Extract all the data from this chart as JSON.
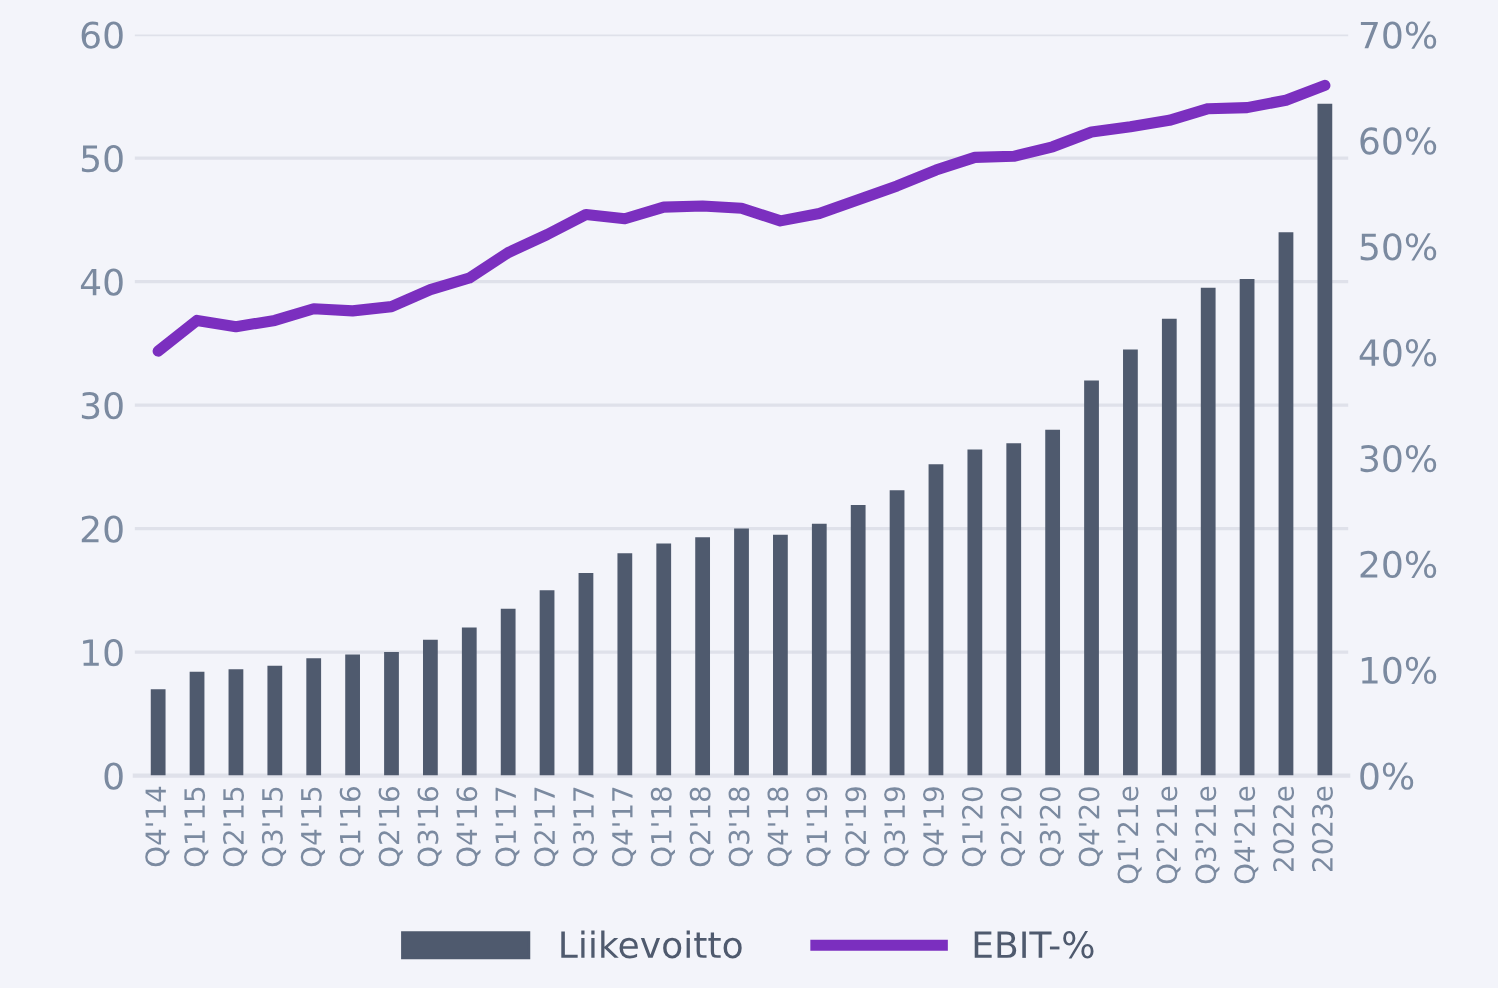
{
  "chart_data": {
    "type": "bar",
    "categories": [
      "Q4'14",
      "Q1'15",
      "Q2'15",
      "Q3'15",
      "Q4'15",
      "Q1'16",
      "Q2'16",
      "Q3'16",
      "Q4'16",
      "Q1'17",
      "Q2'17",
      "Q3'17",
      "Q4'17",
      "Q1'18",
      "Q2'18",
      "Q3'18",
      "Q4'18",
      "Q1'19",
      "Q2'19",
      "Q3'19",
      "Q4'19",
      "Q1'20",
      "Q2'20",
      "Q3'20",
      "Q4'20",
      "Q1'21e",
      "Q2'21e",
      "Q3'21e",
      "Q4'21e",
      "2022e",
      "2023e"
    ],
    "series": [
      {
        "name": "Liikevoitto",
        "color": "#4f5a6e",
        "values": [
          7,
          8.4,
          8.6,
          8.9,
          9.5,
          9.8,
          10,
          11,
          12,
          13.5,
          15,
          16.4,
          18,
          18.8,
          19.3,
          20,
          19.5,
          20.4,
          21.9,
          23.1,
          25.2,
          26.4,
          26.9,
          28,
          32,
          34.5,
          37,
          39.5,
          40.2,
          44,
          54.4
        ]
      },
      {
        "name": "EBIT-%",
        "type": "line",
        "axis": "y2",
        "color": "#7b2fbf",
        "values": [
          40.1,
          43.0,
          42.4,
          43.0,
          44.1,
          43.9,
          44.3,
          45.9,
          47.0,
          49.4,
          51.1,
          53.0,
          52.6,
          53.7,
          53.8,
          53.6,
          52.4,
          53.1,
          54.4,
          55.7,
          57.2,
          58.4,
          58.5,
          59.4,
          60.8,
          61.3,
          61.9,
          63.0,
          63.1,
          63.8,
          65.2
        ]
      }
    ],
    "ylim": [
      0,
      60
    ],
    "yticks": [
      0,
      10,
      20,
      30,
      40,
      50,
      60
    ],
    "y2lim": [
      0,
      70
    ],
    "y2ticks": [
      {
        "value": 0,
        "label": "0%"
      },
      {
        "value": 10,
        "label": "10%"
      },
      {
        "value": 20,
        "label": "20%"
      },
      {
        "value": 30,
        "label": "30%"
      },
      {
        "value": 40,
        "label": "40%"
      },
      {
        "value": 50,
        "label": "50%"
      },
      {
        "value": 60,
        "label": "60%"
      },
      {
        "value": 70,
        "label": "70%"
      }
    ],
    "grid": "y",
    "legend": "bottom",
    "line_style": "solid",
    "marker": "none"
  }
}
